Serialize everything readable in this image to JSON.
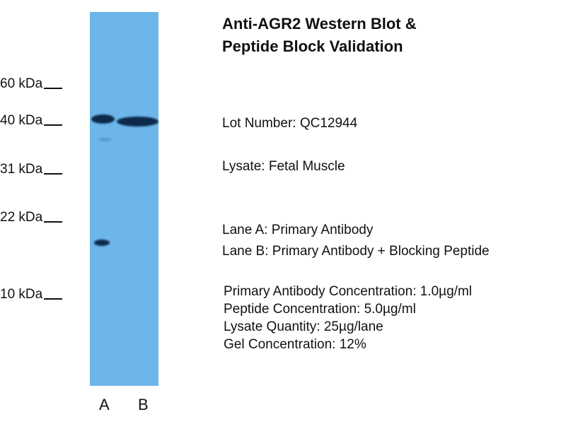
{
  "title_lines": [
    "Anti-AGR2 Western Blot &",
    "Peptide Block Validation"
  ],
  "markers": [
    "60 kDa",
    "40 kDa",
    "31 kDa",
    "22 kDa",
    "10 kDa"
  ],
  "lanes": [
    "A",
    "B"
  ],
  "lot": "Lot Number: QC12944",
  "lysate": "Lysate: Fetal Muscle",
  "lane_a": "Lane A: Primary Antibody",
  "lane_b": "Lane B: Primary Antibody + Blocking Peptide",
  "conditions": [
    "Primary Antibody Concentration: 1.0µg/ml",
    "Peptide Concentration: 5.0µg/ml",
    "Lysate Quantity: 25µg/lane",
    "Gel Concentration: 12%"
  ],
  "colors": {
    "gel": "#6db6ea",
    "band": "#0d2a4a"
  }
}
